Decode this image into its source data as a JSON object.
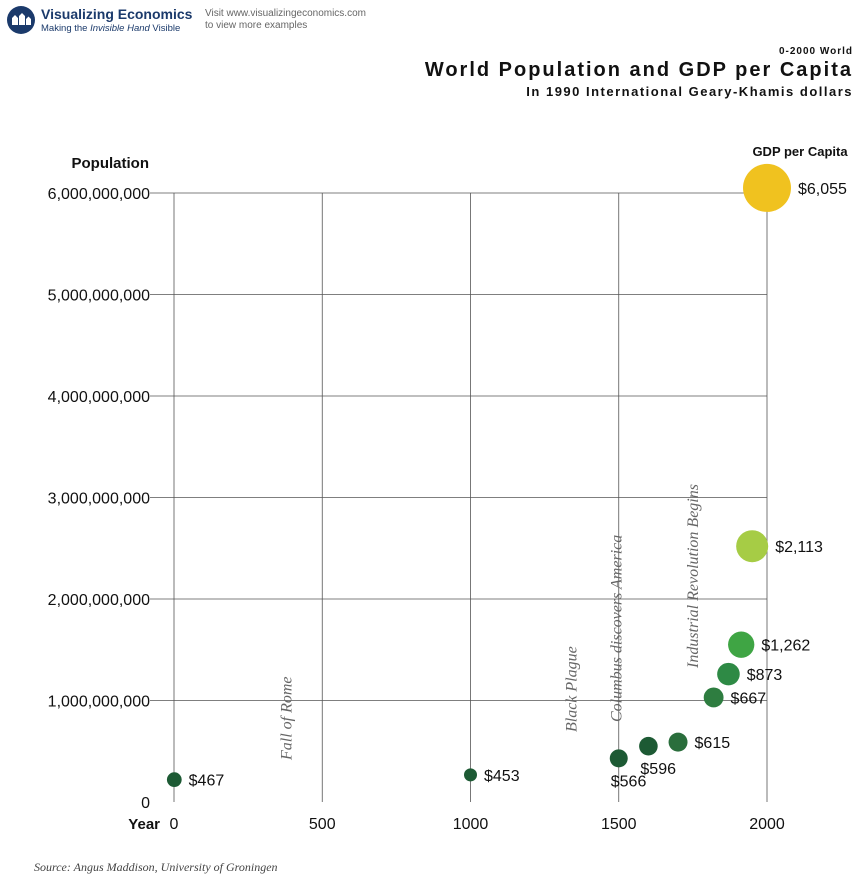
{
  "header": {
    "logo_title": "Visualizing Economics",
    "logo_tagline_prefix": "Making the ",
    "logo_tagline_em": "Invisible Hand",
    "logo_tagline_suffix": " Visible",
    "visit_line1": "Visit www.visualizingeconomics.com",
    "visit_line2": "to view more examples"
  },
  "chart_meta": {
    "kicker": "0-2000 World",
    "title": "World Population and GDP per Capita",
    "subtitle": "In 1990 International Geary-Khamis dollars"
  },
  "chart_data": {
    "type": "scatter",
    "title": "World Population and GDP per Capita",
    "subtitle": "In 1990 International Geary-Khamis dollars",
    "ylabel": "Population",
    "xlabel": "Year",
    "size_label": "GDP per Capita",
    "xlim": [
      0,
      2000
    ],
    "ylim": [
      0,
      6000000000
    ],
    "xticks": [
      0,
      500,
      1000,
      1500,
      2000
    ],
    "xtick_labels": [
      "0",
      "500",
      "1000",
      "1500",
      "2000"
    ],
    "yticks": [
      0,
      1000000000,
      2000000000,
      3000000000,
      4000000000,
      5000000000,
      6000000000
    ],
    "ytick_labels": [
      "0",
      "1,000,000,000",
      "2,000,000,000",
      "3,000,000,000",
      "4,000,000,000",
      "5,000,000,000",
      "6,000,000,000"
    ],
    "grid": true,
    "points": [
      {
        "x": 1,
        "y": 220000000,
        "gdp": 467,
        "label": "$467",
        "color": "#1d5a34"
      },
      {
        "x": 1000,
        "y": 267000000,
        "gdp": 453,
        "label": "$453",
        "color": "#1d5a34"
      },
      {
        "x": 1500,
        "y": 430000000,
        "gdp": 566,
        "label": "$566",
        "color": "#1d5a34"
      },
      {
        "x": 1600,
        "y": 550000000,
        "gdp": 596,
        "label": "$596",
        "color": "#1d5a34"
      },
      {
        "x": 1700,
        "y": 590000000,
        "gdp": 615,
        "label": "$615",
        "color": "#2a6e3c"
      },
      {
        "x": 1820,
        "y": 1030000000,
        "gdp": 667,
        "label": "$667",
        "color": "#2e7d40"
      },
      {
        "x": 1870,
        "y": 1260000000,
        "gdp": 873,
        "label": "$873",
        "color": "#2e8a45"
      },
      {
        "x": 1913,
        "y": 1550000000,
        "gdp": 1262,
        "label": "$1,262",
        "color": "#3fa544"
      },
      {
        "x": 1950,
        "y": 2520000000,
        "gdp": 2113,
        "label": "$2,113",
        "color": "#a6cc45"
      },
      {
        "x": 2000,
        "y": 6050000000,
        "gdp": 6055,
        "label": "$6,055",
        "color": "#f0c21f"
      }
    ],
    "annotations": [
      {
        "x": 380,
        "text": "Fall of Rome"
      },
      {
        "x": 1340,
        "text": "Black Plague"
      },
      {
        "x": 1492,
        "text": "Columbus discovers America"
      },
      {
        "x": 1750,
        "text": "Industrial Revolution Begins"
      }
    ]
  },
  "footer": {
    "source": "Source: Angus Maddison, University of Groningen"
  }
}
